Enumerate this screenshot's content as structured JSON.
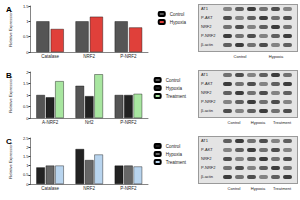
{
  "chart_data": [
    {
      "type": "bar",
      "title": "A",
      "ylabel": "Relative Expression",
      "categories": [
        "Catalase",
        "NRF2",
        "P-NRF2"
      ],
      "series": [
        {
          "name": "Control",
          "color": "#555555",
          "values": [
            1.0,
            1.0,
            1.0
          ]
        },
        {
          "name": "Hypoxia",
          "color": "#e0403a",
          "values": [
            0.75,
            1.15,
            0.8
          ]
        }
      ],
      "ylim": [
        0,
        1.5
      ],
      "yticks": [
        0,
        0.5,
        1,
        1.5
      ],
      "grid": false,
      "legend": "upper right"
    },
    {
      "type": "bar",
      "title": "B",
      "ylabel": "Relative Expression",
      "categories": [
        "A-NRF2",
        "Nrf2",
        "P-NRF2"
      ],
      "series": [
        {
          "name": "Control",
          "color": "#555555",
          "values": [
            1.0,
            1.4,
            1.0
          ]
        },
        {
          "name": "Hypoxia",
          "color": "#222222",
          "values": [
            0.9,
            0.95,
            1.0
          ]
        },
        {
          "name": "Treatment",
          "color": "#a8e6a0",
          "values": [
            1.6,
            1.9,
            1.05
          ]
        }
      ],
      "ylim": [
        0,
        2
      ],
      "yticks": [
        0,
        0.5,
        1,
        1.5,
        2
      ],
      "grid": false,
      "legend": "upper right"
    },
    {
      "type": "bar",
      "title": "C",
      "ylabel": "Relative Expression",
      "categories": [
        "Catalase",
        "NRF2",
        "P-NRF2"
      ],
      "series": [
        {
          "name": "Control",
          "color": "#222222",
          "values": [
            0.9,
            1.9,
            1.0
          ]
        },
        {
          "name": "Hypoxia",
          "color": "#666666",
          "values": [
            1.0,
            1.3,
            1.0
          ]
        },
        {
          "name": "Treatment",
          "color": "#b8d4ee",
          "values": [
            1.0,
            1.6,
            0.95
          ]
        }
      ],
      "ylim": [
        0,
        2.5
      ],
      "yticks": [
        0,
        0.5,
        1,
        1.5,
        2,
        2.5
      ],
      "grid": false,
      "legend": "upper right"
    }
  ],
  "blots": [
    {
      "rows": [
        "AT1",
        "P-AKT",
        "NRF2",
        "P-NRF2",
        "β-actin"
      ],
      "lanes": [
        "Control",
        "Hypoxia"
      ]
    },
    {
      "rows": [
        "AT1",
        "P-AKT",
        "NRF2",
        "P-NRF2",
        "β-actin"
      ],
      "lanes": [
        "Control",
        "Hypoxia",
        "Treatment"
      ]
    },
    {
      "rows": [
        "AT1",
        "P-AKT",
        "NRF2",
        "P-NRF2",
        "β-actin"
      ],
      "lanes": [
        "Control",
        "Hypoxia",
        "Treatment"
      ]
    }
  ]
}
